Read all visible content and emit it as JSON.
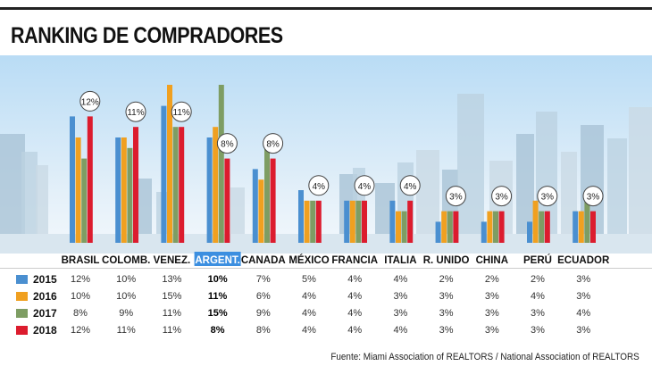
{
  "title": "RANKING DE COMPRADORES",
  "source": "Fuente: Miami Association of REALTORS / National Association of REALTORS",
  "colors": {
    "2015": "#4a8fd0",
    "2016": "#f0a020",
    "2017": "#7e9d63",
    "2018": "#dc1c2e",
    "highlight": "#3c8fe0",
    "sky_top": "#cfe6f8",
    "sky_bottom": "#eef5fb"
  },
  "chart_data": {
    "type": "bar",
    "title": "RANKING DE COMPRADORES",
    "categories": [
      "BRASIL",
      "COLOMB.",
      "VENEZ.",
      "ARGENT.",
      "CANADA",
      "MÉXICO",
      "FRANCIA",
      "ITALIA",
      "R. UNIDO",
      "CHINA",
      "PERÚ",
      "ECUADOR"
    ],
    "highlighted_category": "ARGENT.",
    "series": [
      {
        "name": "2015",
        "values": [
          12,
          10,
          13,
          10,
          7,
          5,
          4,
          4,
          2,
          2,
          2,
          3
        ],
        "labels": [
          "12%",
          "10%",
          "13%",
          "10%",
          "7%",
          "5%",
          "4%",
          "4%",
          "2%",
          "2%",
          "2%",
          "3%"
        ]
      },
      {
        "name": "2016",
        "values": [
          10,
          10,
          15,
          11,
          6,
          4,
          4,
          3,
          3,
          3,
          4,
          3
        ],
        "labels": [
          "10%",
          "10%",
          "15%",
          "11%",
          "6%",
          "4%",
          "4%",
          "3%",
          "3%",
          "3%",
          "4%",
          "3%"
        ]
      },
      {
        "name": "2017",
        "values": [
          8,
          9,
          11,
          15,
          9,
          4,
          4,
          3,
          3,
          3,
          3,
          4
        ],
        "labels": [
          "8%",
          "9%",
          "11%",
          "15%",
          "9%",
          "4%",
          "4%",
          "3%",
          "3%",
          "3%",
          "3%",
          "4%"
        ]
      },
      {
        "name": "2018",
        "values": [
          12,
          11,
          11,
          8,
          8,
          4,
          4,
          4,
          3,
          3,
          3,
          3
        ],
        "labels": [
          "12%",
          "11%",
          "11%",
          "8%",
          "8%",
          "4%",
          "4%",
          "4%",
          "3%",
          "3%",
          "3%",
          "3%"
        ]
      }
    ],
    "callouts": [
      "12%",
      "11%",
      "11%",
      "8%",
      "8%",
      "4%",
      "4%",
      "4%",
      "3%",
      "3%",
      "3%",
      "3%"
    ],
    "ylim": [
      0,
      15
    ],
    "xlabel": "",
    "ylabel": "",
    "grid": false,
    "legend": "bottom-left"
  }
}
